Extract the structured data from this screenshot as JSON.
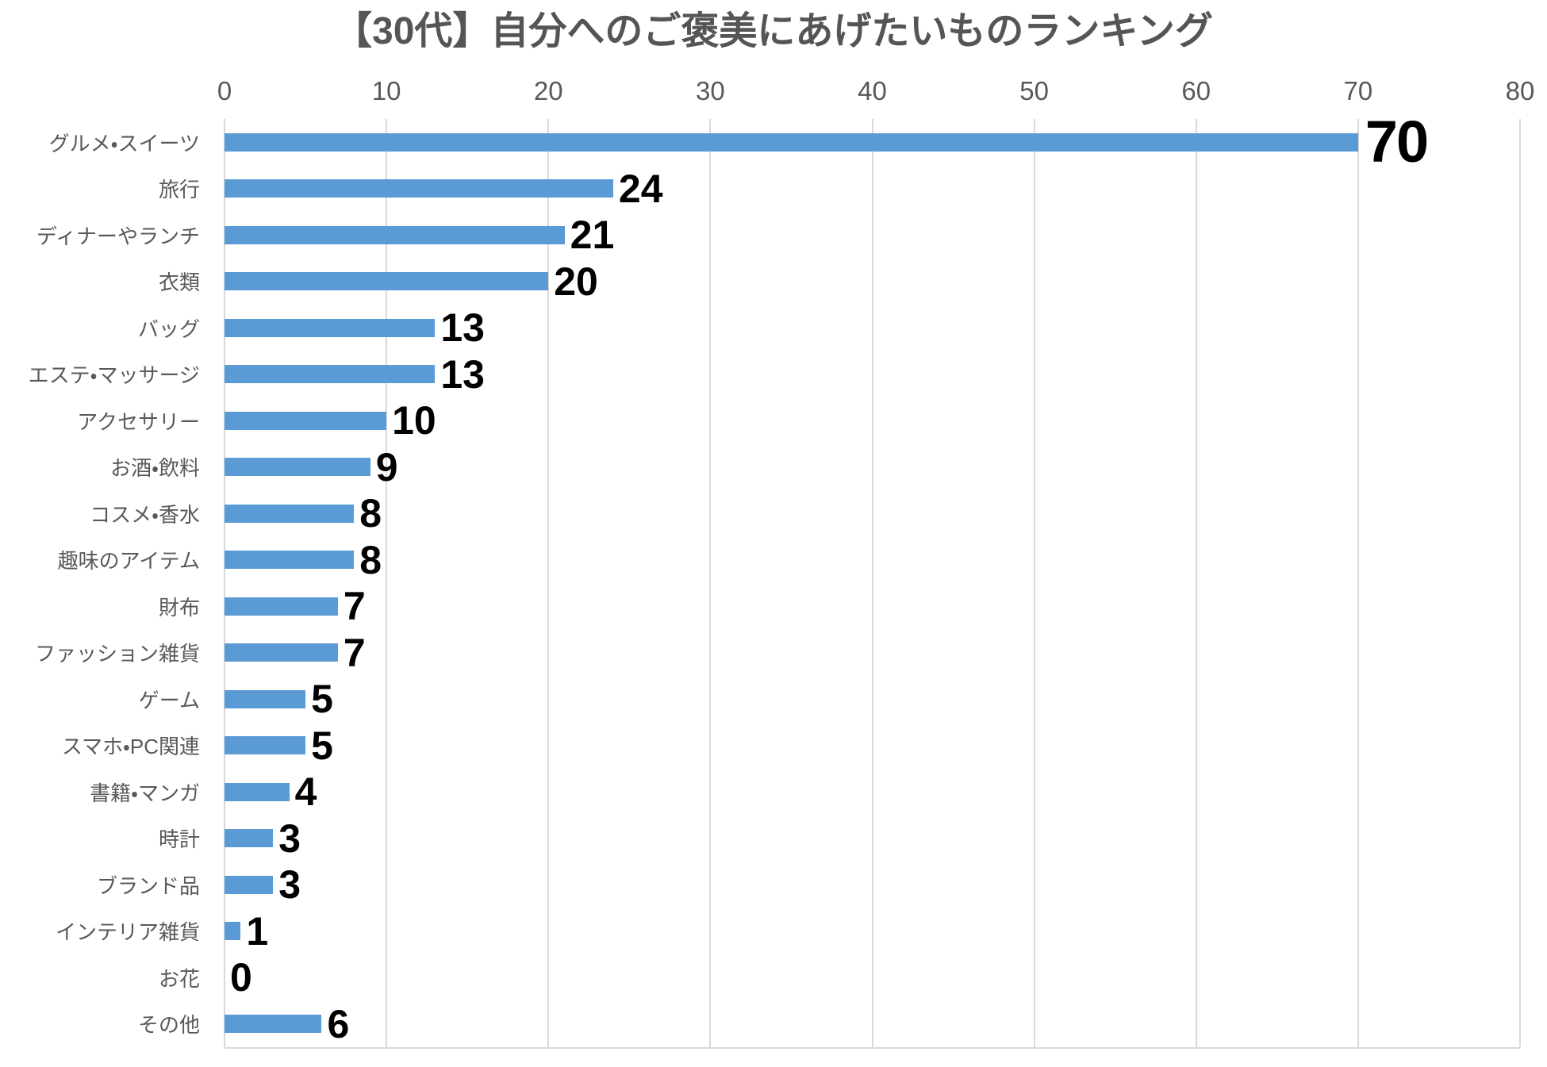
{
  "title": "【30代】自分へのご褒美にあげたいものランキング",
  "chart_data": {
    "type": "bar",
    "orientation": "horizontal",
    "title": "【30代】自分へのご褒美にあげたいものランキング",
    "categories": [
      "グルメ・スイーツ",
      "旅行",
      "ディナーやランチ",
      "衣類",
      "バッグ",
      "エステ・マッサージ",
      "アクセサリー",
      "お酒・飲料",
      "コスメ・香水",
      "趣味のアイテム",
      "財布",
      "ファッション雑貨",
      "ゲーム",
      "スマホ・PC関連",
      "書籍・マンガ",
      "時計",
      "ブランド品",
      "インテリア雑貨",
      "お花",
      "その他"
    ],
    "values": [
      70,
      24,
      21,
      20,
      13,
      13,
      10,
      9,
      8,
      8,
      7,
      7,
      5,
      5,
      4,
      3,
      3,
      1,
      0,
      6
    ],
    "value_labels": [
      "70",
      "24",
      "21",
      "20",
      "13",
      "13",
      "10",
      "9",
      "8",
      "8",
      "7",
      "7",
      "5",
      "5",
      "4",
      "3",
      "3",
      "1",
      "0",
      "6"
    ],
    "xlim": [
      0,
      80
    ],
    "x_ticks": [
      "0",
      "10",
      "20",
      "30",
      "40",
      "50",
      "60",
      "70",
      "80"
    ],
    "grid": "vertical-gridlines",
    "legend": "none",
    "highlighted_row": 0,
    "colors": {
      "bar": "#5b9bd5",
      "gridline": "#d9d9d9",
      "title": "#555555",
      "axis_labels": "#595959",
      "value_labels": "#000000",
      "background": "#ffffff"
    }
  }
}
